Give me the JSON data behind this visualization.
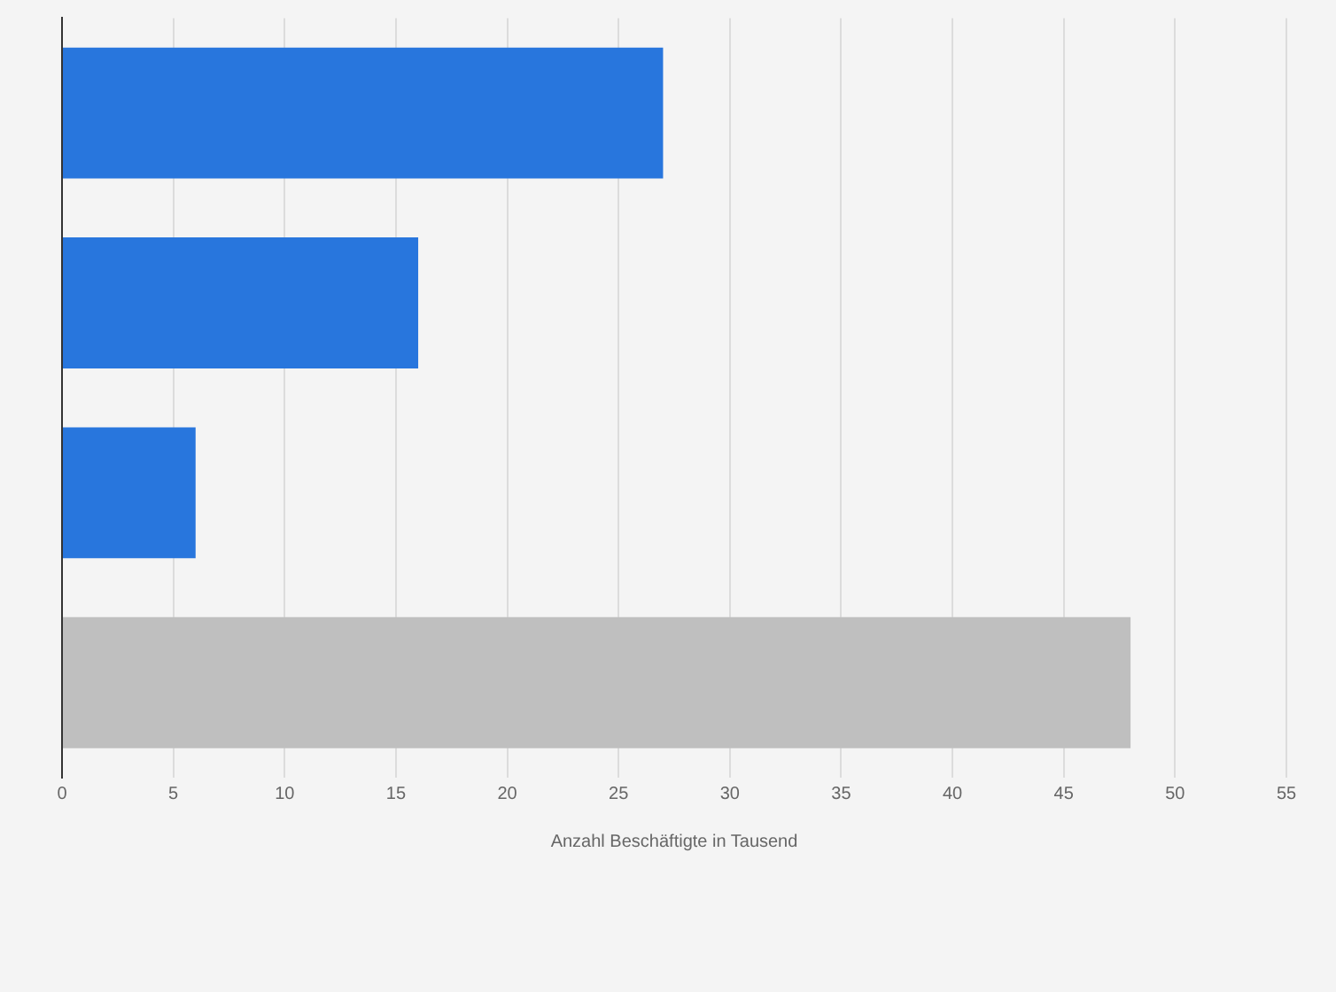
{
  "chart_data": {
    "type": "bar",
    "orientation": "horizontal",
    "xlabel": "Anzahl Beschäftigte in Tausend",
    "categories": [
      null,
      null,
      null,
      null
    ],
    "values": [
      27,
      16,
      6,
      48
    ],
    "colors": [
      "#2876dd",
      "#2876dd",
      "#2876dd",
      "#bfbfbf"
    ],
    "xlim": [
      0,
      55
    ],
    "xticks": [
      0,
      5,
      10,
      15,
      20,
      25,
      30,
      35,
      40,
      45,
      50,
      55
    ],
    "grid": "x",
    "legend": false
  }
}
